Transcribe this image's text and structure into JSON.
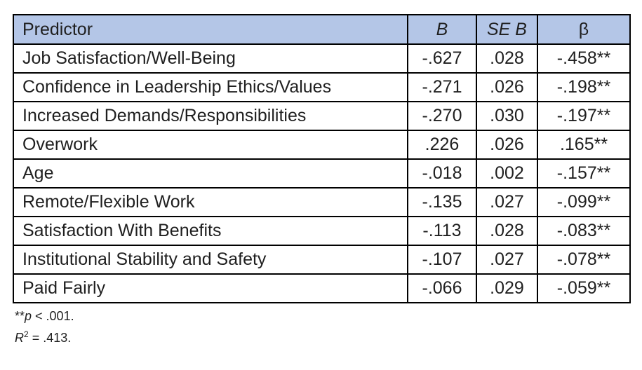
{
  "table": {
    "columns": [
      "Predictor",
      "B",
      "SE B",
      "β"
    ],
    "rows": [
      {
        "predictor": "Job Satisfaction/Well-Being",
        "b": "-.627",
        "se_b": ".028",
        "beta": "-.458**"
      },
      {
        "predictor": "Confidence in Leadership Ethics/Values",
        "b": "-.271",
        "se_b": ".026",
        "beta": "-.198**"
      },
      {
        "predictor": "Increased Demands/Responsibilities",
        "b": "-.270",
        "se_b": ".030",
        "beta": "-.197**"
      },
      {
        "predictor": "Overwork",
        "b": ".226",
        "se_b": ".026",
        "beta": ".165**"
      },
      {
        "predictor": "Age",
        "b": "-.018",
        "se_b": ".002",
        "beta": "-.157**"
      },
      {
        "predictor": "Remote/Flexible Work",
        "b": "-.135",
        "se_b": ".027",
        "beta": "-.099**"
      },
      {
        "predictor": "Satisfaction With Benefits",
        "b": "-.113",
        "se_b": ".028",
        "beta": "-.083**"
      },
      {
        "predictor": "Institutional Stability and Safety",
        "b": "-.107",
        "se_b": ".027",
        "beta": "-.078**"
      },
      {
        "predictor": "Paid Fairly",
        "b": "-.066",
        "se_b": ".029",
        "beta": "-.059**"
      }
    ]
  },
  "footnotes": {
    "significance": {
      "stars": "**",
      "symbol": "p",
      "rest": " < .001."
    },
    "r_squared": {
      "symbol": "R",
      "superscript": "2",
      "rest": " = .413."
    }
  },
  "colors": {
    "header_fill": "#b4c6e7",
    "border": "#000000",
    "text": "#1f1f1f"
  }
}
